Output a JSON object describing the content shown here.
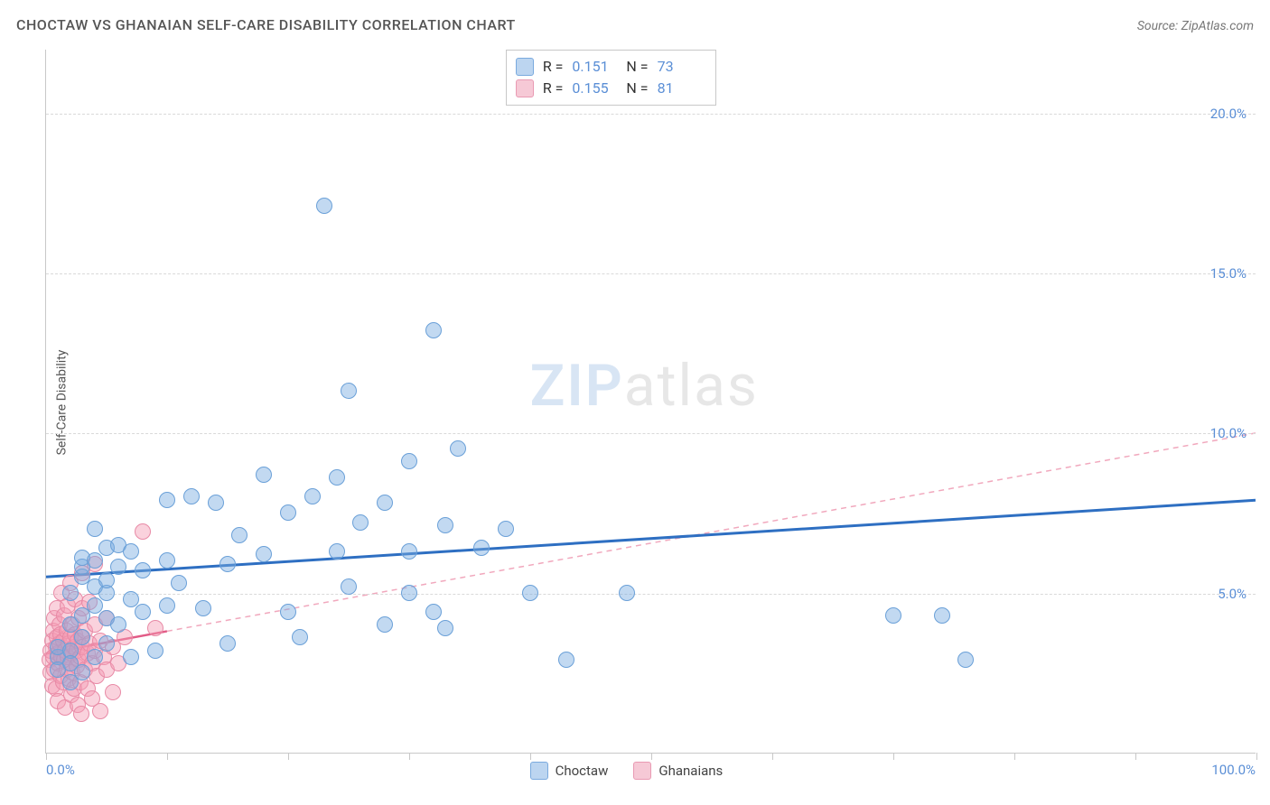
{
  "header": {
    "title": "CHOCTAW VS GHANAIAN SELF-CARE DISABILITY CORRELATION CHART",
    "source_label": "Source: ZipAtlas.com"
  },
  "axes": {
    "ylabel": "Self-Care Disability",
    "xlim": [
      0,
      100
    ],
    "ylim": [
      0,
      22
    ],
    "x_ticks": [
      0,
      10,
      20,
      30,
      40,
      50,
      60,
      70,
      80,
      90,
      100
    ],
    "x_tick_labels": {
      "0": "0.0%",
      "100": "100.0%"
    },
    "y_gridlines": [
      5,
      10,
      15,
      20
    ],
    "y_tick_labels": {
      "5": "5.0%",
      "10": "10.0%",
      "15": "15.0%",
      "20": "20.0%"
    },
    "grid_color": "#d9d9d9",
    "axis_color": "#c8c8c8",
    "tick_label_color": "#5b8fd6",
    "axis_label_color": "#555555"
  },
  "watermark": {
    "part1": "ZIP",
    "part2": "atlas"
  },
  "series": [
    {
      "name": "Choctaw",
      "color_fill": "rgba(120,170,225,0.45)",
      "color_stroke": "#6aa0d8",
      "marker_radius": 9,
      "trend": {
        "x1": 0,
        "y1": 5.5,
        "x2": 100,
        "y2": 7.9,
        "color": "#2e6fc2",
        "width": 3,
        "dash": "none"
      },
      "stats": {
        "R": "0.151",
        "N": "73"
      },
      "swatch_fill": "#bcd5f0",
      "swatch_stroke": "#7aaade",
      "points": [
        [
          1,
          3.0
        ],
        [
          1,
          3.3
        ],
        [
          1,
          2.6
        ],
        [
          2,
          3.2
        ],
        [
          2,
          4.0
        ],
        [
          2,
          5.0
        ],
        [
          2,
          2.8
        ],
        [
          2,
          2.2
        ],
        [
          3,
          3.6
        ],
        [
          3,
          4.3
        ],
        [
          3,
          5.5
        ],
        [
          3,
          5.8
        ],
        [
          3,
          6.1
        ],
        [
          3,
          2.5
        ],
        [
          4,
          3.0
        ],
        [
          4,
          4.6
        ],
        [
          4,
          5.2
        ],
        [
          4,
          6.0
        ],
        [
          4,
          7.0
        ],
        [
          5,
          3.4
        ],
        [
          5,
          4.2
        ],
        [
          5,
          5.0
        ],
        [
          5,
          5.4
        ],
        [
          5,
          6.4
        ],
        [
          6,
          4.0
        ],
        [
          6,
          5.8
        ],
        [
          6,
          6.5
        ],
        [
          7,
          3.0
        ],
        [
          7,
          4.8
        ],
        [
          7,
          6.3
        ],
        [
          8,
          4.4
        ],
        [
          8,
          5.7
        ],
        [
          9,
          3.2
        ],
        [
          10,
          4.6
        ],
        [
          10,
          6.0
        ],
        [
          10,
          7.9
        ],
        [
          11,
          5.3
        ],
        [
          12,
          8.0
        ],
        [
          13,
          4.5
        ],
        [
          14,
          7.8
        ],
        [
          15,
          3.4
        ],
        [
          15,
          5.9
        ],
        [
          16,
          6.8
        ],
        [
          18,
          6.2
        ],
        [
          18,
          8.7
        ],
        [
          20,
          4.4
        ],
        [
          20,
          7.5
        ],
        [
          21,
          3.6
        ],
        [
          22,
          8.0
        ],
        [
          23,
          17.1
        ],
        [
          24,
          6.3
        ],
        [
          24,
          8.6
        ],
        [
          25,
          5.2
        ],
        [
          25,
          11.3
        ],
        [
          26,
          7.2
        ],
        [
          28,
          4.0
        ],
        [
          28,
          7.8
        ],
        [
          30,
          5.0
        ],
        [
          30,
          6.3
        ],
        [
          30,
          9.1
        ],
        [
          32,
          4.4
        ],
        [
          32,
          13.2
        ],
        [
          33,
          3.9
        ],
        [
          33,
          7.1
        ],
        [
          34,
          9.5
        ],
        [
          36,
          6.4
        ],
        [
          38,
          7.0
        ],
        [
          40,
          5.0
        ],
        [
          43,
          2.9
        ],
        [
          48,
          5.0
        ],
        [
          70,
          4.3
        ],
        [
          74,
          4.3
        ],
        [
          76,
          2.9
        ]
      ]
    },
    {
      "name": "Ghanaians",
      "color_fill": "rgba(245,155,180,0.45)",
      "color_stroke": "#e88aa6",
      "marker_radius": 9,
      "trend_solid": {
        "x1": 0,
        "y1": 3.1,
        "x2": 10,
        "y2": 3.8,
        "color": "#e25b86",
        "width": 2.5,
        "dash": "none"
      },
      "trend_dashed": {
        "x1": 10,
        "y1": 3.8,
        "x2": 100,
        "y2": 10.0,
        "color": "#f1a8bd",
        "width": 1.5,
        "dash": "6,5"
      },
      "stats": {
        "R": "0.155",
        "N": "81"
      },
      "swatch_fill": "#f6c9d6",
      "swatch_stroke": "#e99ab3",
      "points": [
        [
          0.3,
          2.9
        ],
        [
          0.4,
          3.2
        ],
        [
          0.4,
          2.5
        ],
        [
          0.5,
          3.5
        ],
        [
          0.5,
          2.1
        ],
        [
          0.6,
          3.0
        ],
        [
          0.6,
          3.8
        ],
        [
          0.7,
          2.6
        ],
        [
          0.7,
          4.2
        ],
        [
          0.8,
          3.3
        ],
        [
          0.8,
          2.0
        ],
        [
          0.9,
          3.6
        ],
        [
          0.9,
          4.5
        ],
        [
          1.0,
          2.8
        ],
        [
          1.0,
          3.1
        ],
        [
          1.0,
          1.6
        ],
        [
          1.1,
          3.4
        ],
        [
          1.1,
          4.0
        ],
        [
          1.2,
          2.4
        ],
        [
          1.2,
          3.7
        ],
        [
          1.3,
          3.0
        ],
        [
          1.3,
          5.0
        ],
        [
          1.4,
          2.2
        ],
        [
          1.4,
          3.5
        ],
        [
          1.5,
          2.9
        ],
        [
          1.5,
          4.3
        ],
        [
          1.6,
          1.4
        ],
        [
          1.6,
          3.2
        ],
        [
          1.7,
          2.6
        ],
        [
          1.7,
          3.8
        ],
        [
          1.8,
          3.0
        ],
        [
          1.8,
          4.6
        ],
        [
          1.9,
          2.3
        ],
        [
          1.9,
          3.4
        ],
        [
          2.0,
          2.8
        ],
        [
          2.0,
          3.6
        ],
        [
          2.0,
          5.3
        ],
        [
          2.1,
          1.8
        ],
        [
          2.1,
          3.1
        ],
        [
          2.2,
          2.5
        ],
        [
          2.2,
          4.0
        ],
        [
          2.3,
          3.3
        ],
        [
          2.3,
          2.0
        ],
        [
          2.4,
          3.7
        ],
        [
          2.4,
          4.8
        ],
        [
          2.5,
          2.7
        ],
        [
          2.5,
          3.2
        ],
        [
          2.6,
          1.5
        ],
        [
          2.6,
          3.5
        ],
        [
          2.7,
          2.9
        ],
        [
          2.7,
          4.2
        ],
        [
          2.8,
          3.0
        ],
        [
          2.8,
          2.2
        ],
        [
          2.9,
          3.6
        ],
        [
          2.9,
          1.2
        ],
        [
          3.0,
          3.3
        ],
        [
          3.0,
          4.5
        ],
        [
          3.0,
          5.6
        ],
        [
          3.2,
          2.6
        ],
        [
          3.2,
          3.8
        ],
        [
          3.4,
          3.1
        ],
        [
          3.4,
          2.0
        ],
        [
          3.6,
          3.4
        ],
        [
          3.6,
          4.7
        ],
        [
          3.8,
          2.8
        ],
        [
          3.8,
          1.7
        ],
        [
          4.0,
          3.2
        ],
        [
          4.0,
          4.0
        ],
        [
          4.0,
          5.9
        ],
        [
          4.2,
          2.4
        ],
        [
          4.5,
          3.5
        ],
        [
          4.5,
          1.3
        ],
        [
          4.8,
          3.0
        ],
        [
          5.0,
          2.6
        ],
        [
          5.0,
          4.2
        ],
        [
          5.5,
          3.3
        ],
        [
          5.5,
          1.9
        ],
        [
          6.0,
          2.8
        ],
        [
          6.5,
          3.6
        ],
        [
          8.0,
          6.9
        ],
        [
          9.0,
          3.9
        ]
      ]
    }
  ],
  "legend_bottom": [
    {
      "label": "Choctaw",
      "swatch_fill": "#bcd5f0",
      "swatch_stroke": "#7aaade"
    },
    {
      "label": "Ghanaians",
      "swatch_fill": "#f6c9d6",
      "swatch_stroke": "#e99ab3"
    }
  ]
}
